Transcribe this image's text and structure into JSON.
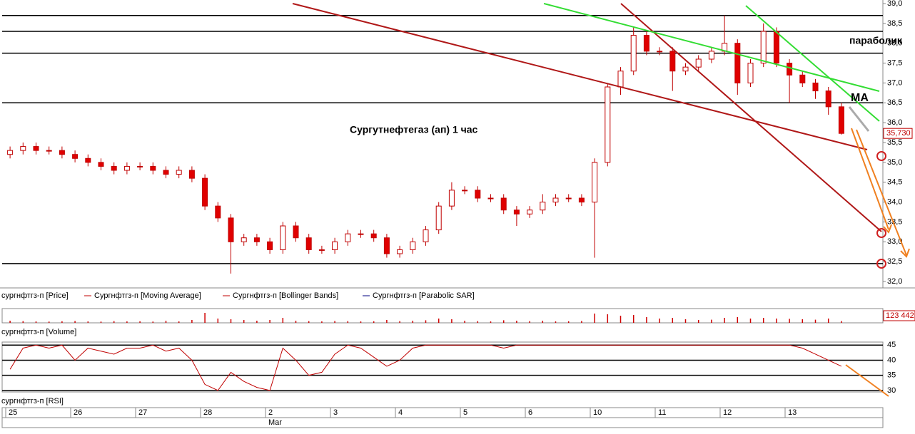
{
  "chart_data": [
    {
      "type": "candlestick",
      "annotations": [
        "Сургутнефтегаз (ап)   1 час",
        "параболик",
        "MA"
      ],
      "legend": [
        "сургнфтгз-п [Price]",
        "Сургнфтгз-п [Moving Average]",
        "Сургнфтгз-п [Bollinger Bands]",
        "Сургнфтгз-п [Parabolic SAR]"
      ],
      "x_labels": [
        "25",
        "26",
        "27",
        "28",
        "2",
        "3",
        "4",
        "5",
        "6",
        "10",
        "11",
        "12",
        "13"
      ],
      "x_month": "Mar",
      "ylim": [
        32,
        39
      ],
      "yticks": [
        {
          "value": 32,
          "label": "32,0"
        },
        {
          "value": 32.5,
          "label": "32,5"
        },
        {
          "value": 33,
          "label": "33,0"
        },
        {
          "value": 33.5,
          "label": "33,5"
        },
        {
          "value": 34,
          "label": "34,0"
        },
        {
          "value": 34.5,
          "label": "34,5"
        },
        {
          "value": 35,
          "label": "35,0"
        },
        {
          "value": 35.5,
          "label": "35,5"
        },
        {
          "value": 36,
          "label": "36,0"
        },
        {
          "value": 36.5,
          "label": "36,5"
        },
        {
          "value": 37,
          "label": "37,0"
        },
        {
          "value": 37.5,
          "label": "37,5"
        },
        {
          "value": 38,
          "label": "38,0"
        },
        {
          "value": 38.5,
          "label": "38,5"
        },
        {
          "value": 39,
          "label": "39,0"
        }
      ],
      "levels": [
        38.7,
        38.3,
        37.75,
        36.5,
        32.45
      ],
      "current": {
        "value": 35.73,
        "label": "35,730"
      },
      "open": [
        35.2,
        35.3,
        35.4,
        35.3,
        35.3,
        35.2,
        35.1,
        35.0,
        34.9,
        34.8,
        34.9,
        34.9,
        34.8,
        34.7,
        34.8,
        34.6,
        33.9,
        33.6,
        33.0,
        33.1,
        33.0,
        32.8,
        33.4,
        33.1,
        32.8,
        32.8,
        33.0,
        33.2,
        33.2,
        33.1,
        32.7,
        32.8,
        33.0,
        33.3,
        33.9,
        34.3,
        34.3,
        34.1,
        34.1,
        33.8,
        33.7,
        33.8,
        34.0,
        34.1,
        34.1,
        34.0,
        35.0,
        36.9,
        37.3,
        38.2,
        37.8,
        37.8,
        37.3,
        37.4,
        37.6,
        37.8,
        38.0,
        37.0,
        37.5,
        38.3,
        37.5,
        37.2,
        37.0,
        36.8,
        36.4
      ],
      "high": [
        35.4,
        35.5,
        35.5,
        35.4,
        35.4,
        35.3,
        35.2,
        35.1,
        35.0,
        35.0,
        35.0,
        35.0,
        34.9,
        34.9,
        34.9,
        34.7,
        34.0,
        33.7,
        33.2,
        33.2,
        33.1,
        33.5,
        33.5,
        33.2,
        32.9,
        33.1,
        33.3,
        33.3,
        33.3,
        33.2,
        32.9,
        33.1,
        33.4,
        34.0,
        34.5,
        34.4,
        34.4,
        34.2,
        34.2,
        33.9,
        33.9,
        34.2,
        34.2,
        34.2,
        34.2,
        35.1,
        37.0,
        37.4,
        38.4,
        38.3,
        37.9,
        37.9,
        37.5,
        37.7,
        37.9,
        38.7,
        38.1,
        37.6,
        38.5,
        38.4,
        37.6,
        37.3,
        37.1,
        36.9,
        36.5
      ],
      "low": [
        35.1,
        35.2,
        35.2,
        35.2,
        35.1,
        35.0,
        34.9,
        34.8,
        34.7,
        34.7,
        34.8,
        34.7,
        34.6,
        34.6,
        34.5,
        33.8,
        33.5,
        32.2,
        32.9,
        32.9,
        32.7,
        32.7,
        33.0,
        32.7,
        32.7,
        32.7,
        32.9,
        33.1,
        33.0,
        32.6,
        32.6,
        32.7,
        32.9,
        33.2,
        33.8,
        34.2,
        34.0,
        34.0,
        33.7,
        33.4,
        33.6,
        33.7,
        33.9,
        34.0,
        33.9,
        32.6,
        34.9,
        36.7,
        37.2,
        37.7,
        37.7,
        36.8,
        37.2,
        37.3,
        37.5,
        37.7,
        36.7,
        36.9,
        37.4,
        37.4,
        36.5,
        36.9,
        36.6,
        36.2,
        35.7
      ],
      "close": [
        35.3,
        35.4,
        35.3,
        35.3,
        35.2,
        35.1,
        35.0,
        34.9,
        34.8,
        34.9,
        34.9,
        34.8,
        34.7,
        34.8,
        34.6,
        33.9,
        33.6,
        33.0,
        33.1,
        33.0,
        32.8,
        33.4,
        33.1,
        32.8,
        32.8,
        33.0,
        33.2,
        33.2,
        33.1,
        32.7,
        32.8,
        33.0,
        33.3,
        33.9,
        34.3,
        34.3,
        34.1,
        34.1,
        33.8,
        33.7,
        33.8,
        34.0,
        34.1,
        34.1,
        34.0,
        35.0,
        36.9,
        37.3,
        38.2,
        37.8,
        37.8,
        37.3,
        37.4,
        37.6,
        37.8,
        38.0,
        37.0,
        37.5,
        38.3,
        37.5,
        37.2,
        37.0,
        36.8,
        36.4,
        35.73
      ]
    },
    {
      "type": "bar",
      "label": "сургнфтгз-п [Volume]",
      "ylim": [
        0,
        1000000
      ],
      "color": "#d00000",
      "current": {
        "value": 123442,
        "label": "123 442"
      },
      "values": [
        150000,
        120000,
        100000,
        90000,
        110000,
        130000,
        100000,
        90000,
        120000,
        100000,
        110000,
        90000,
        150000,
        100000,
        200000,
        700000,
        300000,
        250000,
        200000,
        150000,
        200000,
        350000,
        150000,
        120000,
        100000,
        130000,
        120000,
        100000,
        110000,
        200000,
        120000,
        150000,
        180000,
        300000,
        250000,
        150000,
        120000,
        100000,
        180000,
        150000,
        120000,
        150000,
        100000,
        110000,
        130000,
        650000,
        600000,
        500000,
        550000,
        400000,
        300000,
        350000,
        250000,
        200000,
        220000,
        350000,
        400000,
        300000,
        350000,
        300000,
        280000,
        250000,
        220000,
        300000,
        123442
      ]
    },
    {
      "type": "line",
      "label": "сургнфтгз-п [RSI]",
      "ylim": [
        29.5,
        46
      ],
      "yticks": [
        30,
        35,
        40,
        45
      ],
      "color": "#c00000",
      "values": [
        37,
        44,
        45,
        44,
        45,
        40,
        44,
        43,
        42,
        44,
        44,
        45,
        43,
        44,
        40,
        32,
        30,
        36,
        33,
        31,
        30,
        44,
        40,
        35,
        36,
        42,
        45,
        44,
        41,
        38,
        40,
        44,
        45,
        45,
        45,
        45,
        45,
        45,
        44,
        45,
        45,
        45,
        45,
        45,
        45,
        45,
        45,
        45,
        45,
        45,
        45,
        45,
        45,
        45,
        45,
        45,
        45,
        45,
        45,
        45,
        45,
        44,
        42,
        40,
        38
      ]
    }
  ]
}
